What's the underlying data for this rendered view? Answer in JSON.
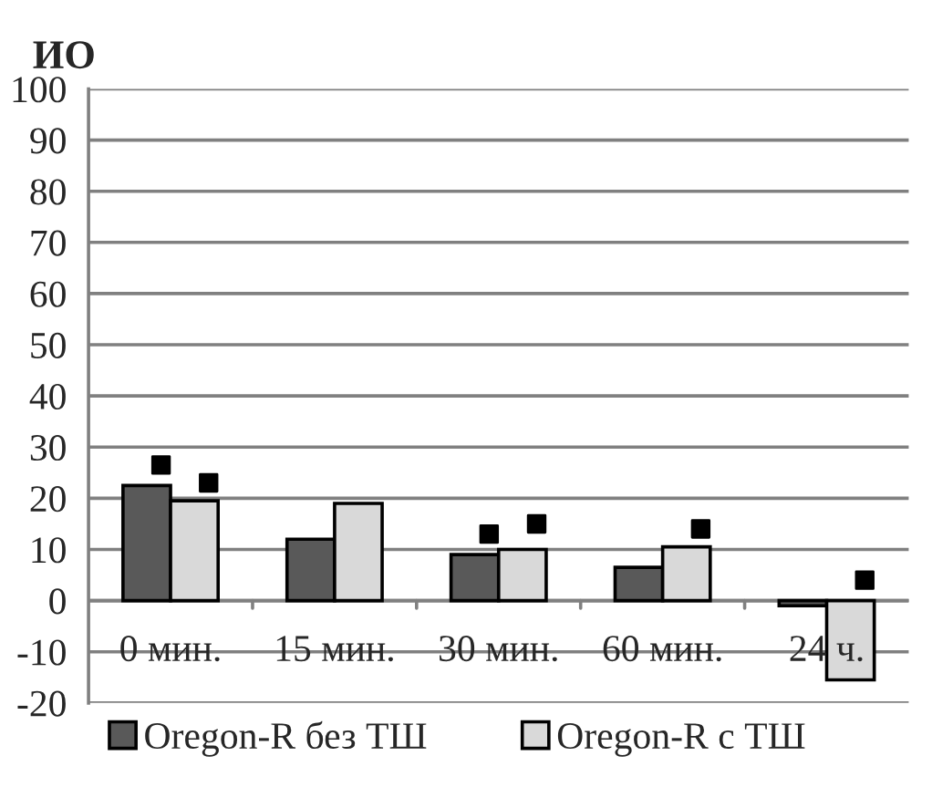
{
  "chart_data": {
    "type": "bar",
    "ylabel": "ИО",
    "categories": [
      "0 мин.",
      "15 мин.",
      "30 мин.",
      "60 мин.",
      "24 ч."
    ],
    "series": [
      {
        "name": "Oregon-R без ТШ",
        "color": "#595959",
        "values": [
          22.5,
          12,
          9,
          6.5,
          -1
        ]
      },
      {
        "name": "Oregon-R с ТШ",
        "color": "#d9d9d9",
        "values": [
          19.5,
          19,
          10,
          10.5,
          -15.5
        ]
      },
      {
        "type": "scatter",
        "color": "#000000",
        "marker": "square",
        "x": [
          "0 мин.",
          "15 мин.",
          "30 мин.",
          "60 мин.",
          "24 ч."
        ],
        "values": [
          26.5,
          null,
          13,
          null,
          null
        ]
      },
      {
        "type": "scatter",
        "color": "#000000",
        "marker": "square",
        "x": [
          "0 мин.",
          "15 мин.",
          "30 мин.",
          "60 мин.",
          "24 ч."
        ],
        "values": [
          23,
          null,
          15,
          14,
          4
        ]
      }
    ],
    "ylim": [
      -20,
      100
    ],
    "yticks": [
      -20,
      -10,
      0,
      10,
      20,
      30,
      40,
      50,
      60,
      70,
      80,
      90,
      100
    ],
    "grid": "y",
    "legend": "bottom"
  }
}
